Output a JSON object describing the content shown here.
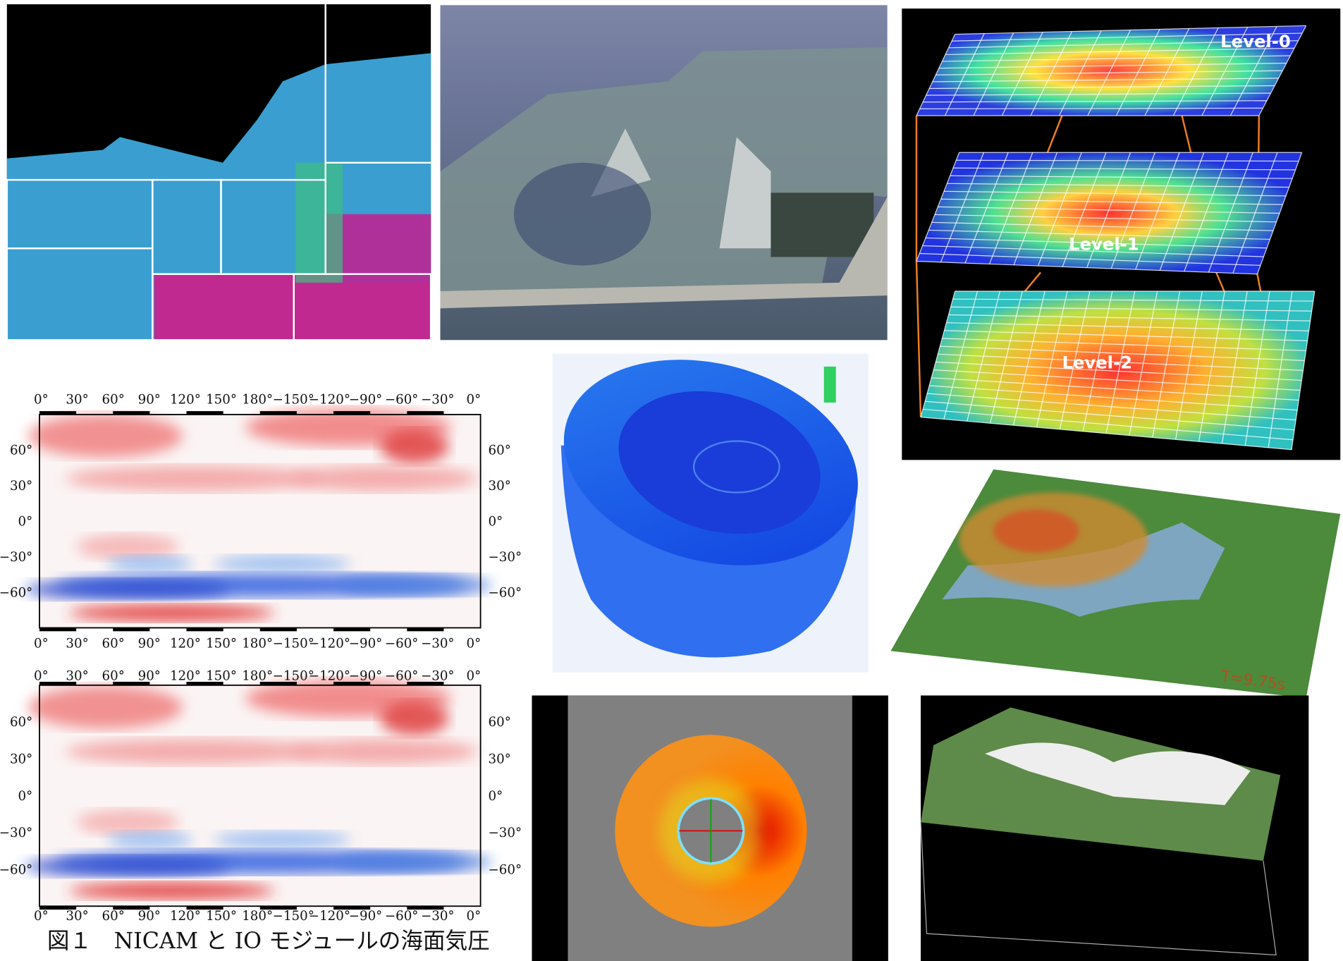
{
  "panels": {
    "amr_levels": [
      "Level-0",
      "Level-1",
      "Level-2"
    ],
    "tsunami_time": "T=9.75s",
    "maps": {
      "lon_labels": [
        "0°",
        "30°",
        "60°",
        "90°",
        "120°",
        "150°",
        "180°",
        "−150°",
        "−120°",
        "−90°",
        "−60°",
        "−30°",
        "0°"
      ],
      "lat_labels": [
        "60°",
        "30°",
        "0°",
        "−30°",
        "−60°"
      ]
    },
    "caption": "図１　NICAM と IO モジュールの海面気圧"
  }
}
